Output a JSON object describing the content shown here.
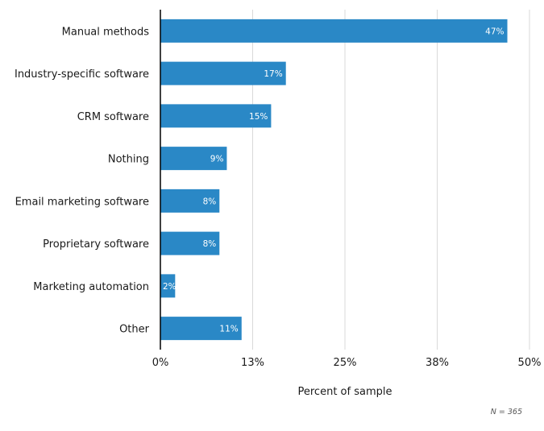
{
  "chart_data": {
    "type": "bar",
    "orientation": "horizontal",
    "title": "",
    "categories": [
      "Manual methods",
      "Industry-specific software",
      "CRM software",
      "Nothing",
      "Email marketing software",
      "Proprietary software",
      "Marketing automation",
      "Other"
    ],
    "values": [
      47,
      17,
      15,
      9,
      8,
      8,
      2,
      11
    ],
    "data_labels": [
      "47%",
      "17%",
      "15%",
      "9%",
      "8%",
      "8%",
      "2%",
      "11%"
    ],
    "xlabel": "Percent of sample",
    "ylabel": "",
    "xlim": [
      0,
      50
    ],
    "xticks": [
      0,
      12.5,
      25,
      37.5,
      50
    ],
    "xtick_labels": [
      "0%",
      "13%",
      "25%",
      "38%",
      "50%"
    ],
    "grid": true,
    "legend": "none",
    "bar_color": "#2a88c6",
    "note": "N = 365"
  }
}
